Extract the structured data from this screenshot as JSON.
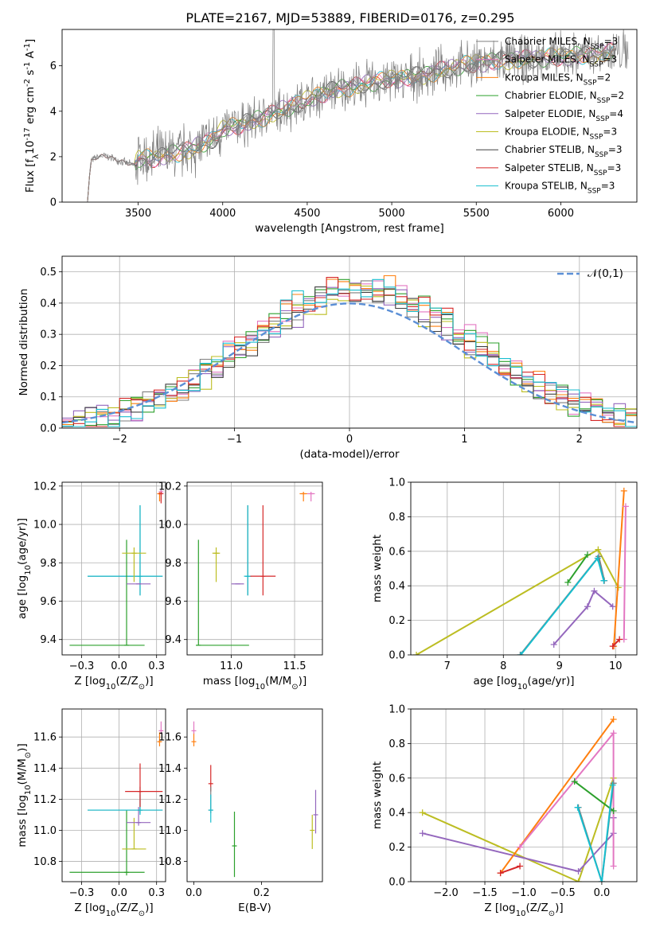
{
  "title": "PLATE=2167, MJD=53889, FIBERID=0176, z=0.295",
  "colors": {
    "Chabrier MILES": "#7f7f7f",
    "Salpeter MILES": "#e377c2",
    "Kroupa MILES": "#ff7f0e",
    "Chabrier ELODIE": "#2ca02c",
    "Salpeter ELODIE": "#9467bd",
    "Kroupa ELODIE": "#bcbd22",
    "Chabrier STELIB": "#404040",
    "Salpeter STELIB": "#d62728",
    "Kroupa STELIB": "#17becf",
    "normal": "#5b8fd6"
  },
  "chart_data": [
    {
      "type": "line",
      "id": "spectrum",
      "xlabel": "wavelength [Angstrom, rest frame]",
      "ylabel": "Flux [f$_\\lambda$10$^{-17}$ erg cm$^{-2}$ s$^{-1}$ A$^{-1}$]",
      "xlim": [
        3050,
        6450
      ],
      "ylim": [
        0,
        7.6
      ],
      "xticks": [
        3500,
        4000,
        4500,
        5000,
        5500,
        6000
      ],
      "yticks": [
        0,
        2,
        4,
        6
      ],
      "grid": false,
      "legend_position": "top-right",
      "continuum": {
        "x": [
          3200,
          3220,
          3250,
          3300,
          3400,
          3480,
          3500,
          3600,
          3700,
          3800,
          3900,
          3950,
          4000,
          4100,
          4200,
          4300,
          4400,
          4500,
          4600,
          4700,
          4800,
          4900,
          5000,
          5100,
          5200,
          5300,
          5400,
          5500,
          5600,
          5700,
          5800,
          5900,
          6000,
          6100,
          6200,
          6300
        ],
        "y": [
          0.0,
          1.8,
          1.95,
          2.05,
          1.8,
          1.6,
          1.9,
          1.95,
          2.1,
          2.3,
          2.6,
          2.8,
          3.2,
          3.4,
          3.6,
          3.9,
          4.2,
          4.5,
          4.8,
          5.0,
          5.1,
          5.3,
          5.4,
          5.5,
          5.6,
          5.8,
          6.0,
          6.1,
          6.2,
          6.25,
          6.3,
          6.35,
          6.4,
          6.45,
          6.5,
          6.6
        ]
      },
      "series": [
        {
          "name": "Chabrier MILES, N$_{SSP}$=3"
        },
        {
          "name": "Salpeter MILES, N$_{SSP}$=3"
        },
        {
          "name": "Kroupa MILES, N$_{SSP}$=2"
        },
        {
          "name": "Chabrier ELODIE, N$_{SSP}$=2"
        },
        {
          "name": "Salpeter ELODIE, N$_{SSP}$=4"
        },
        {
          "name": "Kroupa ELODIE, N$_{SSP}$=3"
        },
        {
          "name": "Chabrier STELIB, N$_{SSP}$=3"
        },
        {
          "name": "Salpeter STELIB, N$_{SSP}$=3"
        },
        {
          "name": "Kroupa STELIB, N$_{SSP}$=3"
        }
      ]
    },
    {
      "type": "line",
      "id": "residuals",
      "xlabel": "(data-model)/error",
      "ylabel": "Normed distribution",
      "xlim": [
        -2.5,
        2.5
      ],
      "ylim": [
        0,
        0.55
      ],
      "xticks": [
        -2,
        -1,
        0,
        1,
        2
      ],
      "yticks": [
        0.0,
        0.1,
        0.2,
        0.3,
        0.4,
        0.5
      ],
      "grid": true,
      "legend_position": "top-right",
      "normal_label": "$\\mathcal{N}(0,1)$",
      "bin_width": 0.1,
      "hist_x0": -2.5
    },
    {
      "type": "scatter",
      "id": "age-vs-Z",
      "xlabel": "Z [log$_{10}$(Z/Z$_\\odot$)]",
      "ylabel": "age  [log$_{10}$(age/yr)]",
      "xlim": [
        -0.38,
        0.31
      ],
      "ylim": [
        9.32,
        10.22
      ],
      "xticks": [
        -0.25,
        0.0,
        0.25
      ],
      "yticks": [
        9.4,
        9.6,
        9.8,
        10.0,
        10.2
      ],
      "grid": true,
      "points": [
        {
          "series": "Chabrier MILES",
          "x": 0.14,
          "y": 9.73,
          "xerr": [
            0.35,
            0.15
          ],
          "yerr": [
            0.1,
            0.37
          ]
        },
        {
          "series": "Kroupa STELIB",
          "x": 0.14,
          "y": 9.73,
          "xerr": [
            0.35,
            0.15
          ],
          "yerr": [
            0.1,
            0.37
          ]
        },
        {
          "series": "Chabrier ELODIE",
          "x": 0.05,
          "y": 9.37,
          "xerr": [
            0.38,
            0.12
          ],
          "yerr": [
            0.0,
            0.55
          ]
        },
        {
          "series": "Kroupa ELODIE",
          "x": 0.1,
          "y": 9.85,
          "xerr": [
            0.08,
            0.08
          ],
          "yerr": [
            0.15,
            0.03
          ]
        },
        {
          "series": "Salpeter ELODIE",
          "x": 0.13,
          "y": 9.69,
          "xerr": [
            0.08,
            0.08
          ],
          "yerr": [
            0.0,
            0.0
          ]
        },
        {
          "series": "Kroupa MILES",
          "x": 0.27,
          "y": 10.16,
          "xerr": [
            0.01,
            0.01
          ],
          "yerr": [
            0.04,
            0.01
          ]
        },
        {
          "series": "Salpeter MILES",
          "x": 0.28,
          "y": 10.17,
          "xerr": [
            0.01,
            0.01
          ],
          "yerr": [
            0.02,
            0.01
          ]
        },
        {
          "series": "Salpeter STELIB",
          "x": 0.28,
          "y": 10.16,
          "xerr": [
            0.0,
            0.0
          ],
          "yerr": [
            0.05,
            0.01
          ]
        }
      ]
    },
    {
      "type": "scatter",
      "id": "age-vs-mass",
      "xlabel": "mass [log$_{10}$(M/M$_\\odot$)]",
      "ylabel": "",
      "xlim": [
        10.65,
        11.72
      ],
      "ylim": [
        9.32,
        10.22
      ],
      "xticks": [
        11.0,
        11.5
      ],
      "yticks": [
        9.4,
        9.6,
        9.8,
        10.0,
        10.2
      ],
      "grid": true,
      "points": [
        {
          "series": "Chabrier ELODIE",
          "x": 10.74,
          "y": 9.37,
          "xerr": [
            0.02,
            0.4
          ],
          "yerr": [
            0.0,
            0.55
          ]
        },
        {
          "series": "Kroupa ELODIE",
          "x": 10.88,
          "y": 9.85,
          "xerr": [
            0.03,
            0.03
          ],
          "yerr": [
            0.15,
            0.03
          ]
        },
        {
          "series": "Salpeter ELODIE",
          "x": 11.05,
          "y": 9.69,
          "xerr": [
            0.05,
            0.05
          ],
          "yerr": [
            0.0,
            0.0
          ]
        },
        {
          "series": "Chabrier MILES",
          "x": 11.13,
          "y": 9.73,
          "xerr": [
            0.02,
            0.02
          ],
          "yerr": [
            0.1,
            0.37
          ]
        },
        {
          "series": "Kroupa STELIB",
          "x": 11.13,
          "y": 9.73,
          "xerr": [
            0.03,
            0.03
          ],
          "yerr": [
            0.1,
            0.37
          ]
        },
        {
          "series": "Salpeter STELIB",
          "x": 11.25,
          "y": 9.73,
          "xerr": [
            0.1,
            0.1
          ],
          "yerr": [
            0.1,
            0.37
          ]
        },
        {
          "series": "Kroupa MILES",
          "x": 11.57,
          "y": 10.16,
          "xerr": [
            0.03,
            0.03
          ],
          "yerr": [
            0.04,
            0.01
          ]
        },
        {
          "series": "Salpeter MILES",
          "x": 11.63,
          "y": 10.16,
          "xerr": [
            0.03,
            0.03
          ],
          "yerr": [
            0.04,
            0.01
          ]
        }
      ]
    },
    {
      "type": "line",
      "id": "weight-vs-age",
      "xlabel": "age  [log$_{10}$(age/yr)]",
      "ylabel": "mass weight",
      "xlim": [
        6.35,
        10.38
      ],
      "ylim": [
        0,
        1.0
      ],
      "xticks": [
        7,
        8,
        9,
        10
      ],
      "yticks": [
        0.0,
        0.2,
        0.4,
        0.6,
        0.8,
        1.0
      ],
      "grid": true,
      "lines": [
        {
          "series": "Kroupa ELODIE",
          "x": [
            6.45,
            9.69,
            10.05
          ],
          "y": [
            0.0,
            0.61,
            0.39
          ]
        },
        {
          "series": "Chabrier MILES",
          "x": [
            8.3,
            9.7,
            9.8
          ],
          "y": [
            0.0,
            0.57,
            0.43
          ]
        },
        {
          "series": "Kroupa STELIB",
          "x": [
            8.31,
            9.68,
            9.79
          ],
          "y": [
            0.0,
            0.56,
            0.43
          ]
        },
        {
          "series": "Chabrier ELODIE",
          "x": [
            9.15,
            9.5
          ],
          "y": [
            0.42,
            0.58
          ]
        },
        {
          "series": "Salpeter ELODIE",
          "x": [
            8.9,
            9.5,
            9.62,
            9.95
          ],
          "y": [
            0.06,
            0.28,
            0.37,
            0.28
          ]
        },
        {
          "series": "Kroupa MILES",
          "x": [
            9.97,
            10.15
          ],
          "y": [
            0.05,
            0.95
          ]
        },
        {
          "series": "Salpeter MILES",
          "x": [
            10.15,
            10.18
          ],
          "y": [
            0.09,
            0.86
          ]
        },
        {
          "series": "Salpeter STELIB",
          "x": [
            9.95,
            10.07
          ],
          "y": [
            0.05,
            0.09
          ]
        }
      ]
    },
    {
      "type": "scatter",
      "id": "mass-vs-Z",
      "xlabel": "Z [log$_{10}$(Z/Z$_\\odot$)]",
      "ylabel": "mass [log$_{10}$(M/M$_\\odot$)]",
      "xlim": [
        -0.38,
        0.31
      ],
      "ylim": [
        10.67,
        11.78
      ],
      "xticks": [
        -0.25,
        0.0,
        0.25
      ],
      "yticks": [
        10.8,
        11.0,
        11.2,
        11.4,
        11.6
      ],
      "grid": true,
      "points": [
        {
          "series": "Chabrier ELODIE",
          "x": 0.05,
          "y": 10.73,
          "xerr": [
            0.38,
            0.12
          ],
          "yerr": [
            0.02,
            0.4
          ]
        },
        {
          "series": "Kroupa ELODIE",
          "x": 0.1,
          "y": 10.88,
          "xerr": [
            0.08,
            0.08
          ],
          "yerr": [
            0.0,
            0.2
          ]
        },
        {
          "series": "Salpeter ELODIE",
          "x": 0.13,
          "y": 11.05,
          "xerr": [
            0.08,
            0.08
          ],
          "yerr": [
            0.02,
            0.1
          ]
        },
        {
          "series": "Chabrier MILES",
          "x": 0.14,
          "y": 11.13,
          "xerr": [
            0.35,
            0.15
          ],
          "yerr": [
            0.02,
            0.15
          ]
        },
        {
          "series": "Kroupa STELIB",
          "x": 0.14,
          "y": 11.13,
          "xerr": [
            0.35,
            0.15
          ],
          "yerr": [
            0.03,
            0.1
          ]
        },
        {
          "series": "Salpeter STELIB",
          "x": 0.14,
          "y": 11.25,
          "xerr": [
            0.1,
            0.15
          ],
          "yerr": [
            0.1,
            0.18
          ]
        },
        {
          "series": "Kroupa MILES",
          "x": 0.27,
          "y": 11.57,
          "xerr": [
            0.01,
            0.01
          ],
          "yerr": [
            0.03,
            0.06
          ]
        },
        {
          "series": "Salpeter MILES",
          "x": 0.28,
          "y": 11.64,
          "xerr": [
            0.01,
            0.01
          ],
          "yerr": [
            0.02,
            0.06
          ]
        }
      ]
    },
    {
      "type": "scatter",
      "id": "mass-vs-ebv",
      "xlabel": "E(B-V)",
      "ylabel": "",
      "xlim": [
        -0.02,
        0.38
      ],
      "ylim": [
        10.67,
        11.78
      ],
      "xticks": [
        0.0,
        0.2
      ],
      "yticks": [
        10.8,
        11.0,
        11.2,
        11.4,
        11.6
      ],
      "grid": false,
      "points": [
        {
          "series": "Kroupa MILES",
          "x": 0.0,
          "y": 11.57,
          "xerr": [
            0,
            0
          ],
          "yerr": [
            0.03,
            0.06
          ]
        },
        {
          "series": "Salpeter MILES",
          "x": 0.0,
          "y": 11.64,
          "xerr": [
            0,
            0
          ],
          "yerr": [
            0.02,
            0.06
          ]
        },
        {
          "series": "Salpeter STELIB",
          "x": 0.05,
          "y": 11.3,
          "xerr": [
            0,
            0
          ],
          "yerr": [
            0.05,
            0.12
          ]
        },
        {
          "series": "Chabrier MILES",
          "x": 0.05,
          "y": 11.13,
          "xerr": [
            0,
            0
          ],
          "yerr": [
            0.02,
            0.15
          ]
        },
        {
          "series": "Kroupa STELIB",
          "x": 0.05,
          "y": 11.13,
          "xerr": [
            0,
            0
          ],
          "yerr": [
            0.08,
            0.1
          ]
        },
        {
          "series": "Chabrier ELODIE",
          "x": 0.12,
          "y": 10.9,
          "xerr": [
            0,
            0
          ],
          "yerr": [
            0.2,
            0.22
          ]
        },
        {
          "series": "Kroupa ELODIE",
          "x": 0.35,
          "y": 11.0,
          "xerr": [
            0,
            0
          ],
          "yerr": [
            0.12,
            0.1
          ]
        },
        {
          "series": "Salpeter ELODIE",
          "x": 0.36,
          "y": 11.1,
          "xerr": [
            0,
            0
          ],
          "yerr": [
            0.12,
            0.16
          ]
        }
      ]
    },
    {
      "type": "line",
      "id": "weight-vs-Z",
      "xlabel": "Z [log$_{10}$(Z/Z$_\\odot$)]",
      "ylabel": "mass weight",
      "xlim": [
        -2.45,
        0.45
      ],
      "ylim": [
        0,
        1.0
      ],
      "xticks": [
        -2.0,
        -1.5,
        -1.0,
        -0.5,
        0.0
      ],
      "yticks": [
        0.0,
        0.2,
        0.4,
        0.6,
        0.8,
        1.0
      ],
      "grid": true,
      "lines": [
        {
          "series": "Kroupa ELODIE",
          "x": [
            -2.3,
            -0.3,
            0.15
          ],
          "y": [
            0.4,
            0.0,
            0.6
          ]
        },
        {
          "series": "Salpeter ELODIE",
          "x": [
            -2.3,
            -0.3,
            0.15,
            0.15
          ],
          "y": [
            0.28,
            0.06,
            0.28,
            0.37
          ]
        },
        {
          "series": "Kroupa MILES",
          "x": [
            -1.3,
            0.15
          ],
          "y": [
            0.05,
            0.94
          ]
        },
        {
          "series": "Salpeter MILES",
          "x": [
            -1.05,
            0.15,
            0.15
          ],
          "y": [
            0.2,
            0.86,
            0.09
          ]
        },
        {
          "series": "Chabrier ELODIE",
          "x": [
            -0.35,
            0.15
          ],
          "y": [
            0.58,
            0.41
          ]
        },
        {
          "series": "Chabrier MILES",
          "x": [
            -0.3,
            0.0,
            0.15
          ],
          "y": [
            0.43,
            0.0,
            0.57
          ]
        },
        {
          "series": "Kroupa STELIB",
          "x": [
            -0.31,
            0.0,
            0.14
          ],
          "y": [
            0.43,
            0.0,
            0.56
          ]
        },
        {
          "series": "Salpeter STELIB",
          "x": [
            -1.3,
            -1.05
          ],
          "y": [
            0.05,
            0.09
          ]
        }
      ]
    }
  ]
}
